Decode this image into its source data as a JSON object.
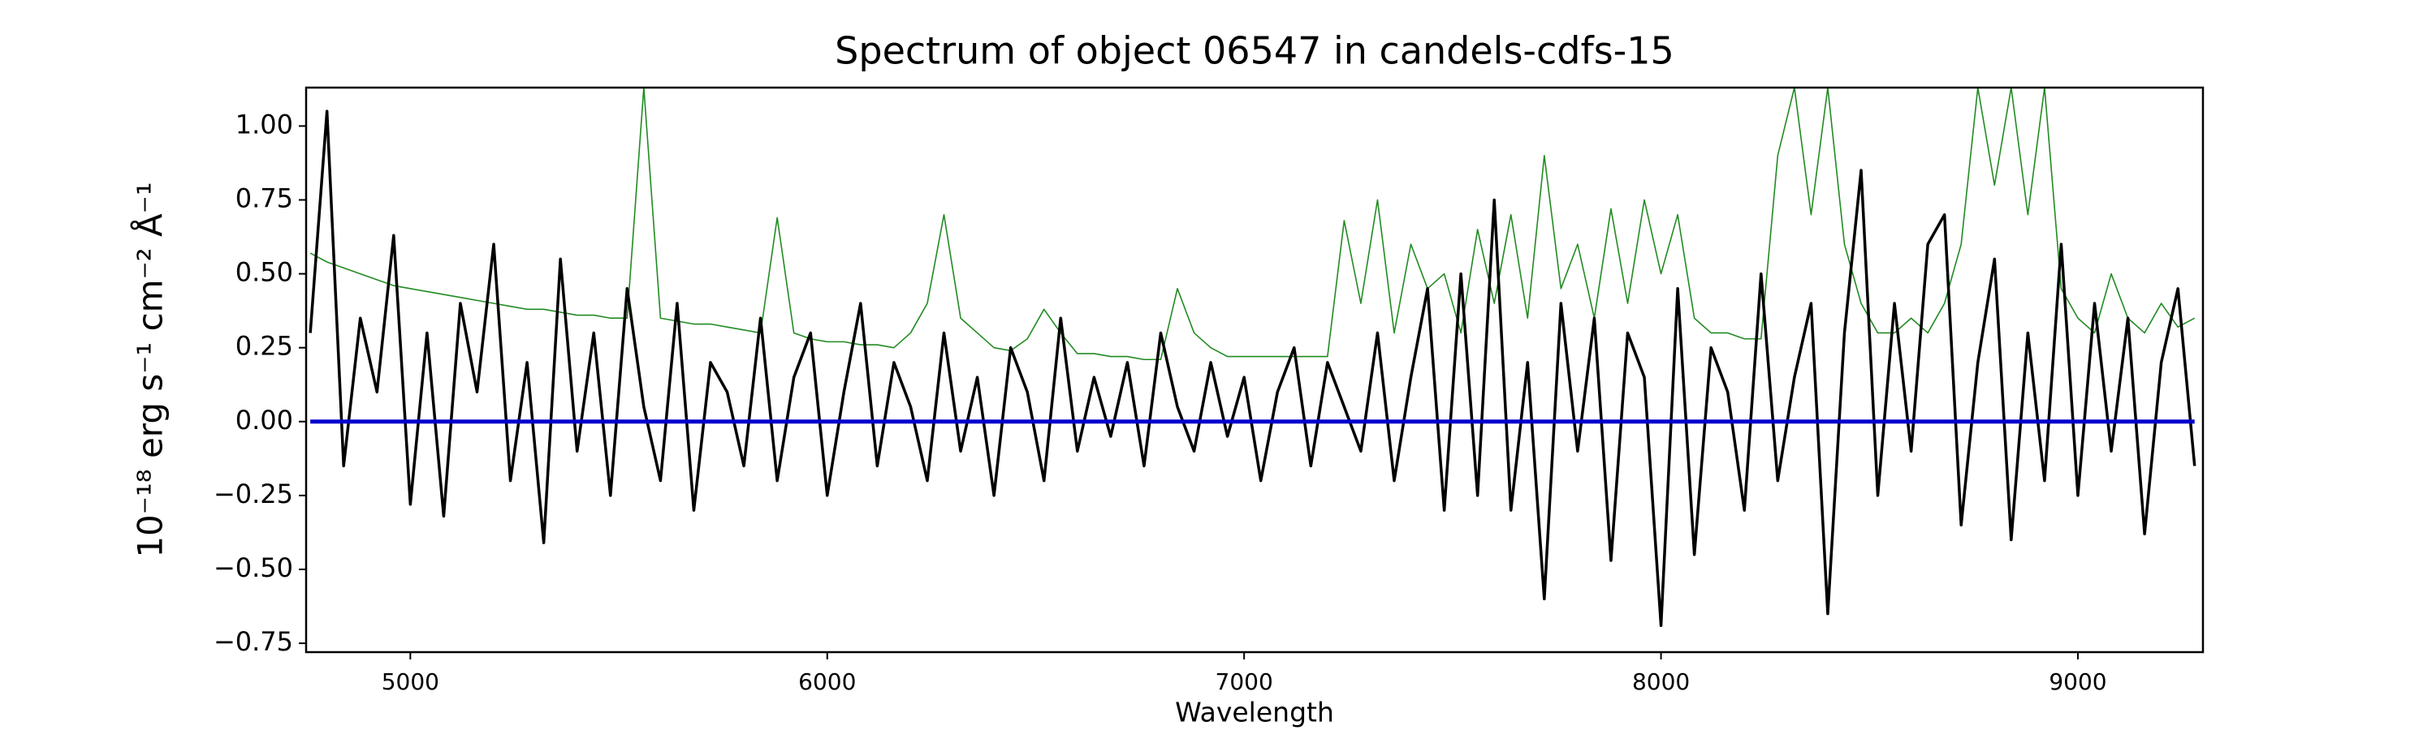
{
  "chart_data": {
    "type": "line",
    "title": "Spectrum of object 06547 in candels-cdfs-15",
    "xlabel": "Wavelength",
    "ylabel": "10⁻¹⁸ erg s⁻¹ cm⁻² Å⁻¹",
    "x": [
      4760,
      4800,
      4840,
      4880,
      4920,
      4960,
      5000,
      5040,
      5080,
      5120,
      5160,
      5200,
      5240,
      5280,
      5320,
      5360,
      5400,
      5440,
      5480,
      5520,
      5560,
      5600,
      5640,
      5680,
      5720,
      5760,
      5800,
      5840,
      5880,
      5920,
      5960,
      6000,
      6040,
      6080,
      6120,
      6160,
      6200,
      6240,
      6280,
      6320,
      6360,
      6400,
      6440,
      6480,
      6520,
      6560,
      6600,
      6640,
      6680,
      6720,
      6760,
      6800,
      6840,
      6880,
      6920,
      6960,
      7000,
      7040,
      7080,
      7120,
      7160,
      7200,
      7240,
      7280,
      7320,
      7360,
      7400,
      7440,
      7480,
      7520,
      7560,
      7600,
      7640,
      7680,
      7720,
      7760,
      7800,
      7840,
      7880,
      7920,
      7960,
      8000,
      8040,
      8080,
      8120,
      8160,
      8200,
      8240,
      8280,
      8320,
      8360,
      8400,
      8440,
      8480,
      8520,
      8560,
      8600,
      8640,
      8680,
      8720,
      8760,
      8800,
      8840,
      8880,
      8920,
      8960,
      9000,
      9040,
      9080,
      9120,
      9160,
      9200,
      9240,
      9280
    ],
    "series": [
      {
        "color": "#228b22",
        "values": [
          0.57,
          0.54,
          0.52,
          0.5,
          0.48,
          0.46,
          0.45,
          0.44,
          0.43,
          0.42,
          0.41,
          0.4,
          0.39,
          0.38,
          0.38,
          0.37,
          0.36,
          0.36,
          0.35,
          0.35,
          1.13,
          0.35,
          0.34,
          0.33,
          0.33,
          0.32,
          0.31,
          0.3,
          0.69,
          0.3,
          0.28,
          0.27,
          0.27,
          0.26,
          0.26,
          0.25,
          0.3,
          0.4,
          0.7,
          0.35,
          0.3,
          0.25,
          0.24,
          0.28,
          0.38,
          0.3,
          0.23,
          0.23,
          0.22,
          0.22,
          0.21,
          0.21,
          0.45,
          0.3,
          0.25,
          0.22,
          0.22,
          0.22,
          0.22,
          0.22,
          0.22,
          0.22,
          0.68,
          0.4,
          0.75,
          0.3,
          0.6,
          0.45,
          0.5,
          0.3,
          0.65,
          0.4,
          0.7,
          0.35,
          0.9,
          0.45,
          0.6,
          0.35,
          0.72,
          0.4,
          0.75,
          0.5,
          0.7,
          0.35,
          0.3,
          0.3,
          0.28,
          0.28,
          0.9,
          1.13,
          0.7,
          1.13,
          0.6,
          0.4,
          0.3,
          0.3,
          0.35,
          0.3,
          0.4,
          0.6,
          1.13,
          0.8,
          1.13,
          0.7,
          1.13,
          0.45,
          0.35,
          0.3,
          0.5,
          0.35,
          0.3,
          0.4,
          0.32,
          0.35
        ],
        "width": 1.6
      },
      {
        "color": "#000000",
        "values": [
          0.3,
          1.05,
          -0.15,
          0.35,
          0.1,
          0.63,
          -0.28,
          0.3,
          -0.32,
          0.4,
          0.1,
          0.6,
          -0.2,
          0.2,
          -0.41,
          0.55,
          -0.1,
          0.3,
          -0.25,
          0.45,
          0.05,
          -0.2,
          0.4,
          -0.3,
          0.2,
          0.1,
          -0.15,
          0.35,
          -0.2,
          0.15,
          0.3,
          -0.25,
          0.1,
          0.4,
          -0.15,
          0.2,
          0.05,
          -0.2,
          0.3,
          -0.1,
          0.15,
          -0.25,
          0.25,
          0.1,
          -0.2,
          0.35,
          -0.1,
          0.15,
          -0.05,
          0.2,
          -0.15,
          0.3,
          0.05,
          -0.1,
          0.2,
          -0.05,
          0.15,
          -0.2,
          0.1,
          0.25,
          -0.15,
          0.2,
          0.05,
          -0.1,
          0.3,
          -0.2,
          0.15,
          0.45,
          -0.3,
          0.5,
          -0.25,
          0.75,
          -0.3,
          0.2,
          -0.6,
          0.4,
          -0.1,
          0.35,
          -0.47,
          0.3,
          0.15,
          -0.69,
          0.45,
          -0.45,
          0.25,
          0.1,
          -0.3,
          0.5,
          -0.2,
          0.15,
          0.4,
          -0.65,
          0.3,
          0.85,
          -0.25,
          0.4,
          -0.1,
          0.6,
          0.7,
          -0.35,
          0.2,
          0.55,
          -0.4,
          0.3,
          -0.2,
          0.6,
          -0.25,
          0.4,
          -0.1,
          0.35,
          -0.38,
          0.2,
          0.45,
          -0.15
        ],
        "width": 3.5
      },
      {
        "color": "#0000cd",
        "values": [
          0,
          0,
          0,
          0,
          0,
          0,
          0,
          0,
          0,
          0,
          0,
          0,
          0,
          0,
          0,
          0,
          0,
          0,
          0,
          0,
          0,
          0,
          0,
          0,
          0,
          0,
          0,
          0,
          0,
          0,
          0,
          0,
          0,
          0,
          0,
          0,
          0,
          0,
          0,
          0,
          0,
          0,
          0,
          0,
          0,
          0,
          0,
          0,
          0,
          0,
          0,
          0,
          0,
          0,
          0,
          0,
          0,
          0,
          0,
          0,
          0,
          0,
          0,
          0,
          0,
          0,
          0,
          0,
          0,
          0,
          0,
          0,
          0,
          0,
          0,
          0,
          0,
          0,
          0,
          0,
          0,
          0,
          0,
          0,
          0,
          0,
          0,
          0,
          0,
          0,
          0,
          0,
          0,
          0,
          0,
          0,
          0,
          0,
          0,
          0,
          0,
          0,
          0,
          0,
          0,
          0,
          0,
          0,
          0,
          0,
          0,
          0,
          0,
          0
        ],
        "width": 5
      }
    ],
    "xlim": [
      4750,
      9300
    ],
    "ylim": [
      -0.78,
      1.13
    ],
    "xticks": [
      5000,
      6000,
      7000,
      8000,
      9000
    ],
    "yticks": [
      {
        "value": -0.75,
        "label": "−0.75"
      },
      {
        "value": -0.5,
        "label": "−0.50"
      },
      {
        "value": -0.25,
        "label": "−0.25"
      },
      {
        "value": 0,
        "label": "0.00"
      },
      {
        "value": 0.25,
        "label": "0.25"
      },
      {
        "value": 0.5,
        "label": "0.50"
      },
      {
        "value": 0.75,
        "label": "0.75"
      },
      {
        "value": 1,
        "label": "1.00"
      }
    ],
    "grid": false
  }
}
